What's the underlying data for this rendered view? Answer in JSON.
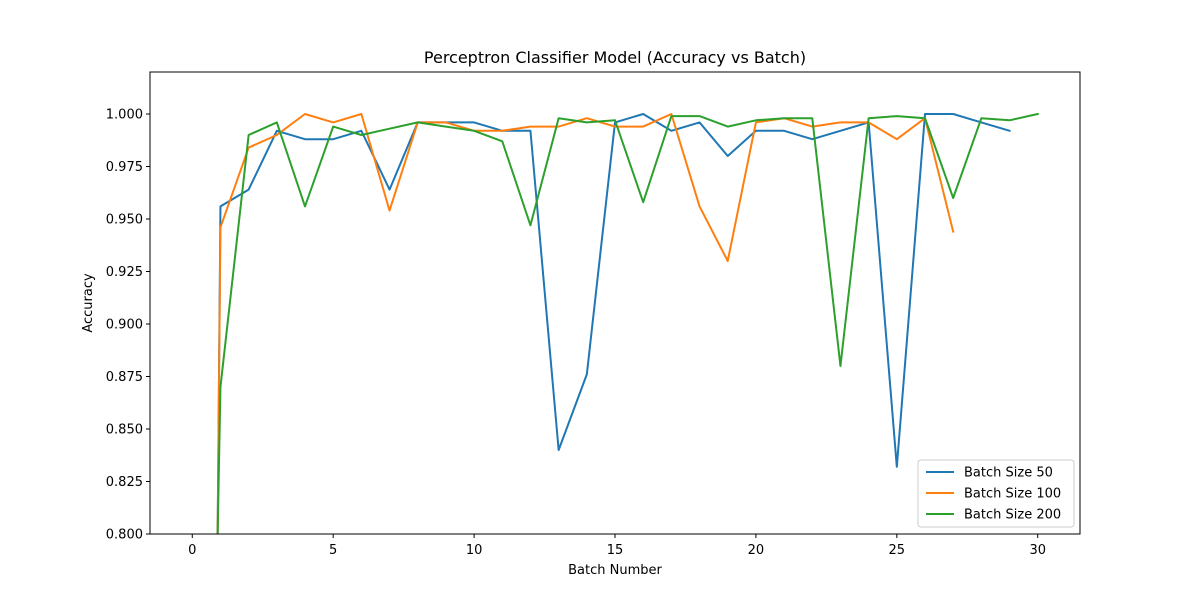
{
  "chart_data": {
    "type": "line",
    "title": "Perceptron Classifier Model (Accuracy vs Batch)",
    "xlabel": "Batch Number",
    "ylabel": "Accuracy",
    "xlim": [
      -1.5,
      31.5
    ],
    "ylim": [
      0.8,
      1.02
    ],
    "x_ticks": [
      0,
      5,
      10,
      15,
      20,
      25,
      30
    ],
    "y_ticks": [
      0.8,
      0.825,
      0.85,
      0.875,
      0.9,
      0.925,
      0.95,
      0.975,
      1.0
    ],
    "y_tick_labels": [
      "0.800",
      "0.825",
      "0.850",
      "0.875",
      "0.900",
      "0.925",
      "0.950",
      "0.975",
      "1.000"
    ],
    "grid": false,
    "legend_position": "lower-right",
    "series": [
      {
        "name": "Batch Size 50",
        "color": "#1f77b4",
        "x": [
          0.9,
          1,
          2,
          3,
          4,
          5,
          6,
          7,
          8,
          9,
          10,
          11,
          12,
          13,
          14,
          15,
          16,
          17,
          18,
          19,
          20,
          21,
          22,
          23,
          24,
          25,
          26,
          27,
          28,
          29
        ],
        "y": [
          0.8,
          0.956,
          0.964,
          0.992,
          0.988,
          0.988,
          0.992,
          0.964,
          0.996,
          0.996,
          0.996,
          0.992,
          0.992,
          0.84,
          0.876,
          0.996,
          1.0,
          0.992,
          0.996,
          0.98,
          0.992,
          0.992,
          0.988,
          0.992,
          0.996,
          0.832,
          1.0,
          1.0,
          0.996,
          0.992
        ]
      },
      {
        "name": "Batch Size 100",
        "color": "#ff7f0e",
        "x": [
          0.9,
          1,
          2,
          3,
          4,
          5,
          6,
          7,
          8,
          9,
          10,
          11,
          12,
          13,
          14,
          15,
          16,
          17,
          18,
          19,
          20,
          21,
          22,
          23,
          24,
          25,
          26,
          27
        ],
        "y": [
          0.8,
          0.946,
          0.984,
          0.99,
          1.0,
          0.996,
          1.0,
          0.954,
          0.996,
          0.996,
          0.992,
          0.992,
          0.994,
          0.994,
          0.998,
          0.994,
          0.994,
          1.0,
          0.956,
          0.93,
          0.996,
          0.998,
          0.994,
          0.996,
          0.996,
          0.988,
          0.998,
          0.944
        ]
      },
      {
        "name": "Batch Size 200",
        "color": "#2ca02c",
        "x": [
          0.9,
          1,
          2,
          3,
          4,
          5,
          6,
          7,
          8,
          9,
          10,
          11,
          12,
          13,
          14,
          15,
          16,
          17,
          18,
          19,
          20,
          21,
          22,
          23,
          24,
          25,
          26,
          27,
          28,
          29,
          30
        ],
        "y": [
          0.8,
          0.87,
          0.99,
          0.996,
          0.956,
          0.994,
          0.99,
          0.993,
          0.996,
          0.994,
          0.992,
          0.987,
          0.947,
          0.998,
          0.996,
          0.997,
          0.958,
          0.999,
          0.999,
          0.994,
          0.997,
          0.998,
          0.998,
          0.88,
          0.998,
          0.999,
          0.998,
          0.96,
          0.998,
          0.997,
          1.0
        ]
      }
    ]
  }
}
